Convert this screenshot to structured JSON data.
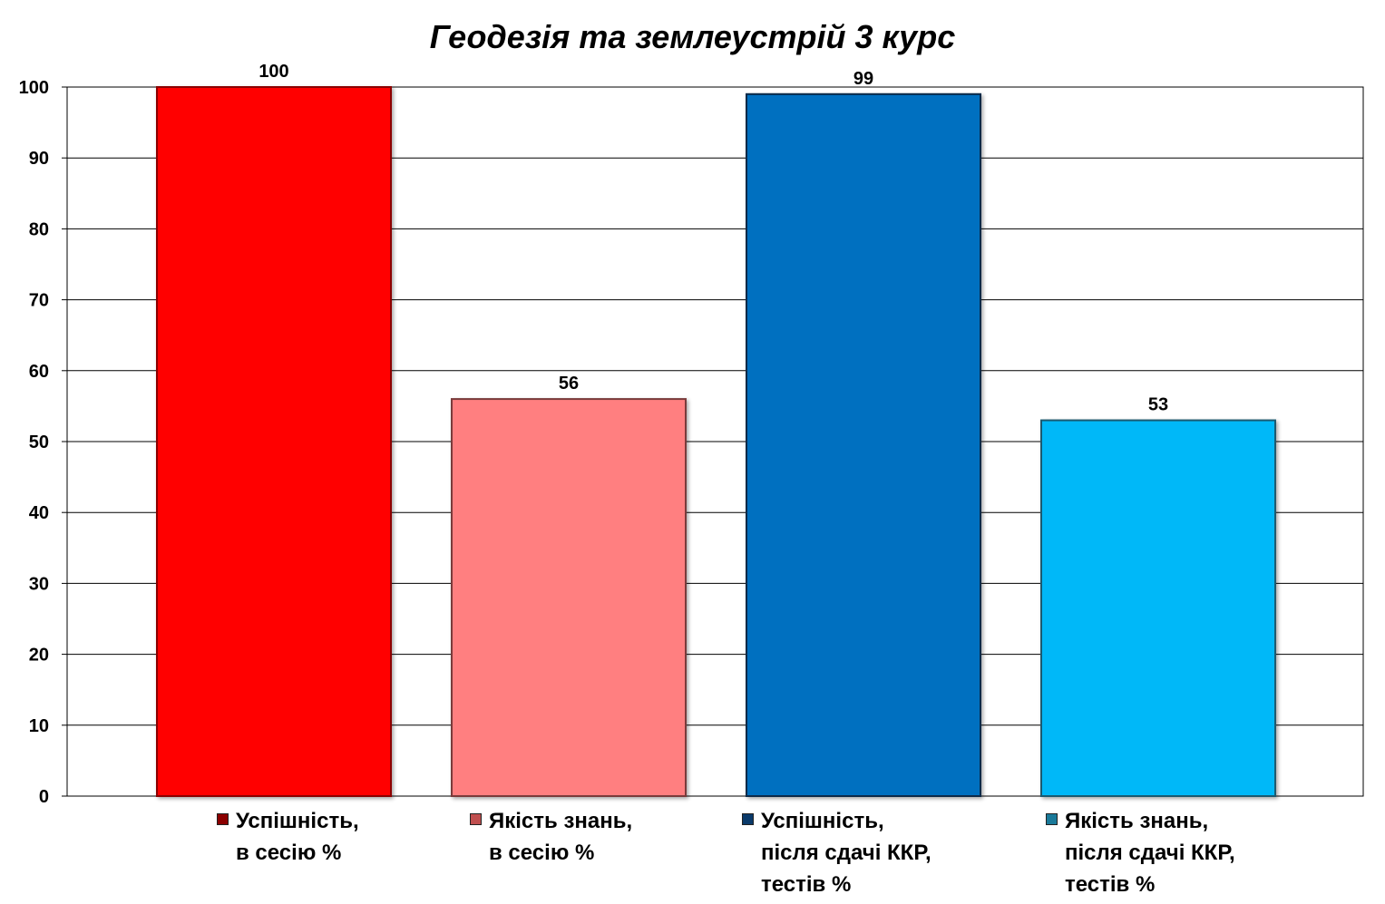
{
  "chart_data": {
    "type": "bar",
    "title": "Геодезія та землеустрій 3 курс",
    "xlabel": "",
    "ylabel": "",
    "ylim": [
      0,
      100
    ],
    "yticks": [
      0,
      10,
      20,
      30,
      40,
      50,
      60,
      70,
      80,
      90,
      100
    ],
    "grid": true,
    "legend_position": "bottom",
    "series": [
      {
        "name": "Успішність,\nв сесію %",
        "value": 100,
        "value_label": "100",
        "color": "#ff0000",
        "edge_color": "#8b0000",
        "swatch_color": "#8b0000"
      },
      {
        "name": "Якість знань,\nв сесію %",
        "value": 56,
        "value_label": "56",
        "color": "#ff7f80",
        "edge_color": "#7a3a3a",
        "swatch_color": "#c04f4f"
      },
      {
        "name": "Успішність,\nпісля сдачі ККР,\nтестів %",
        "value": 99,
        "value_label": "99",
        "color": "#0070c0",
        "edge_color": "#0a2a4a",
        "swatch_color": "#0a3a6a"
      },
      {
        "name": "Якість знань,\nпісля сдачі ККР,\nтестів %",
        "value": 53,
        "value_label": "53",
        "color": "#00b8f8",
        "edge_color": "#1a5a70",
        "swatch_color": "#1a7a9a"
      }
    ]
  }
}
